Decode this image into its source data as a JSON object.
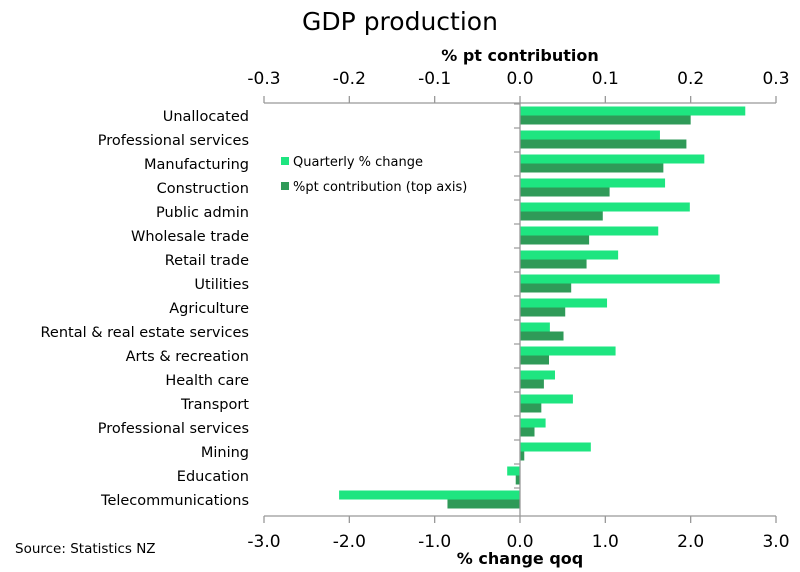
{
  "chart_data": {
    "type": "bar",
    "orientation": "horizontal",
    "title": "GDP production",
    "top_axis_label": "% pt contribution",
    "bottom_axis_label": "% change qoq",
    "top_xlim": [
      -0.3,
      0.3
    ],
    "bottom_xlim": [
      -3.0,
      3.0
    ],
    "top_ticks": [
      "-0.3",
      "-0.2",
      "-0.1",
      "0.0",
      "0.1",
      "0.2",
      "0.3"
    ],
    "bottom_ticks": [
      "-3.0",
      "-2.0",
      "-1.0",
      "0.0",
      "1.0",
      "2.0",
      "3.0"
    ],
    "grid": false,
    "legend_position": "upper-left inside plot",
    "categories": [
      "Unallocated",
      "Professional services",
      "Manufacturing",
      "Construction",
      "Public admin",
      "Wholesale trade",
      "Retail trade",
      "Utilities",
      "Agriculture",
      "Rental & real estate services",
      "Arts & recreation",
      "Health care",
      "Transport",
      "Professional services",
      "Mining",
      "Education",
      "Telecommunications"
    ],
    "series": [
      {
        "name": "Quarterly % change",
        "axis": "bottom",
        "color": "#1ee580",
        "values": [
          2.64,
          1.64,
          2.16,
          1.7,
          1.99,
          1.62,
          1.15,
          2.34,
          1.02,
          0.35,
          1.12,
          0.41,
          0.62,
          0.3,
          0.83,
          -0.15,
          -2.12
        ]
      },
      {
        "name": "%pt contribution (top axis)",
        "axis": "top",
        "color": "#2f9a58",
        "values": [
          0.2,
          0.195,
          0.168,
          0.105,
          0.097,
          0.081,
          0.078,
          0.06,
          0.053,
          0.051,
          0.034,
          0.028,
          0.025,
          0.017,
          0.005,
          -0.005,
          -0.085
        ]
      }
    ]
  },
  "source": "Source:  Statistics NZ"
}
